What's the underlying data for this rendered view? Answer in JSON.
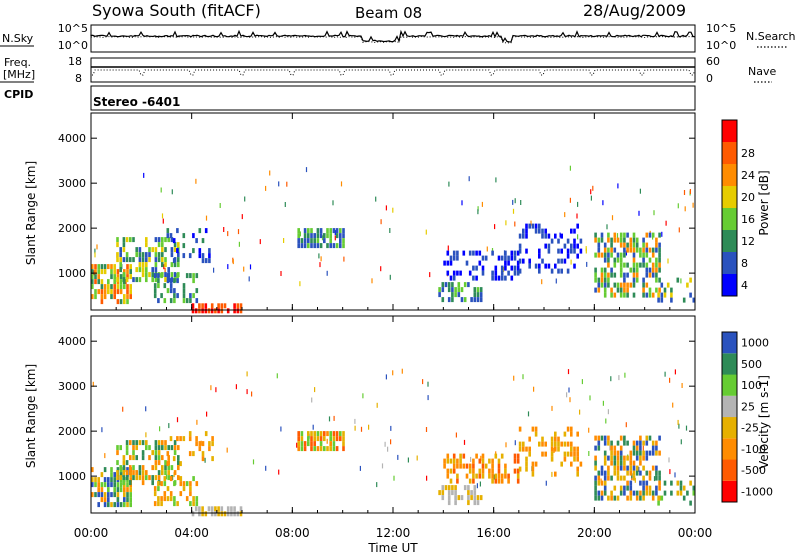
{
  "header": {
    "station": "Syowa South (fitACF)",
    "beam": "Beam 08",
    "date": "28/Aug/2009"
  },
  "noise_panel": {
    "left_label": "N.Sky",
    "left_ticks": [
      "10^5",
      "10^0"
    ],
    "right_ticks": [
      "10^5",
      "10^0"
    ],
    "right_label": "N.Search"
  },
  "freq_panel": {
    "left_label_1": "Freq.",
    "left_label_2": "[MHz]",
    "left_ticks": [
      "18",
      "8"
    ],
    "right_ticks": [
      "60",
      "0"
    ],
    "right_label": "Nave"
  },
  "cpid": {
    "label": "CPID",
    "value": "Stereo -6401"
  },
  "colors": {
    "power": [
      "#0000ff",
      "#2a52be",
      "#2e8b57",
      "#66cc33",
      "#e6cc00",
      "#ff8c00",
      "#ff5a00",
      "#ff0000"
    ],
    "velocity": [
      "#ff0000",
      "#ff5a00",
      "#ff8c00",
      "#e6b000",
      "#b4b4b4",
      "#66cc33",
      "#2e8b57",
      "#2a52be"
    ]
  },
  "chart_data": [
    {
      "type": "heatmap",
      "name": "power",
      "ylabel": "Slant Range [km]",
      "yticks": [
        "1000",
        "2000",
        "3000",
        "4000"
      ],
      "ylim": [
        180,
        4560
      ],
      "xlim_hours": [
        0,
        24
      ],
      "colorbar_label": "Power [dB]",
      "colorbar_ticks": [
        "4",
        "8",
        "12",
        "16",
        "20",
        "24",
        "28"
      ],
      "regions": [
        {
          "t": [
            0.0,
            1.6
          ],
          "r": [
            400,
            1200
          ],
          "c": [
            2,
            3,
            5,
            6,
            4
          ],
          "d": 0.75
        },
        {
          "t": [
            1.0,
            3.5
          ],
          "r": [
            900,
            1800
          ],
          "c": [
            1,
            2,
            3,
            4
          ],
          "d": 0.55
        },
        {
          "t": [
            2.5,
            4.2
          ],
          "r": [
            400,
            1000
          ],
          "c": [
            1,
            2,
            3
          ],
          "d": 0.45
        },
        {
          "t": [
            3.0,
            4.8
          ],
          "r": [
            1300,
            2000
          ],
          "c": [
            0,
            1,
            2
          ],
          "d": 0.25
        },
        {
          "t": [
            4.0,
            6.0
          ],
          "r": [
            200,
            330
          ],
          "c": [
            6,
            7
          ],
          "d": 0.85
        },
        {
          "t": [
            8.2,
            10.0
          ],
          "r": [
            1600,
            2000
          ],
          "c": [
            1,
            2,
            3
          ],
          "d": 0.85
        },
        {
          "t": [
            13.8,
            15.5
          ],
          "r": [
            400,
            800
          ],
          "c": [
            1,
            2,
            3
          ],
          "d": 0.55
        },
        {
          "t": [
            14.0,
            17.0
          ],
          "r": [
            900,
            1500
          ],
          "c": [
            0,
            1
          ],
          "d": 0.4
        },
        {
          "t": [
            17.0,
            19.5
          ],
          "r": [
            1000,
            2100
          ],
          "c": [
            0,
            1
          ],
          "d": 0.3
        },
        {
          "t": [
            20.0,
            22.6
          ],
          "r": [
            500,
            1900
          ],
          "c": [
            1,
            2,
            3,
            5
          ],
          "d": 0.6
        },
        {
          "t": [
            22.5,
            24.0
          ],
          "r": [
            400,
            900
          ],
          "c": [
            1,
            2,
            4
          ],
          "d": 0.3
        }
      ]
    },
    {
      "type": "heatmap",
      "name": "velocity",
      "ylabel": "Slant Range [km]",
      "yticks": [
        "1000",
        "2000",
        "3000",
        "4000"
      ],
      "ylim": [
        180,
        4560
      ],
      "xlim_hours": [
        0,
        24
      ],
      "xticks": [
        "00:00",
        "04:00",
        "08:00",
        "12:00",
        "16:00",
        "20:00",
        "00:00"
      ],
      "xlabel": "Time UT",
      "colorbar_label": "Velocity [m s-1]",
      "colorbar_ticks": [
        "-1000",
        "-500",
        "-100",
        "-25",
        "25",
        "100",
        "500",
        "1000"
      ],
      "regions": [
        {
          "t": [
            0.0,
            1.6
          ],
          "r": [
            400,
            1200
          ],
          "c": [
            2,
            3,
            5,
            6,
            7
          ],
          "d": 0.75
        },
        {
          "t": [
            1.0,
            3.5
          ],
          "r": [
            900,
            1800
          ],
          "c": [
            2,
            3,
            5,
            6
          ],
          "d": 0.55
        },
        {
          "t": [
            2.5,
            4.2
          ],
          "r": [
            400,
            1000
          ],
          "c": [
            2,
            3,
            5
          ],
          "d": 0.45
        },
        {
          "t": [
            3.0,
            4.8
          ],
          "r": [
            1300,
            2000
          ],
          "c": [
            2,
            3
          ],
          "d": 0.25
        },
        {
          "t": [
            4.0,
            6.0
          ],
          "r": [
            200,
            330
          ],
          "c": [
            3,
            4
          ],
          "d": 0.85
        },
        {
          "t": [
            8.2,
            10.0
          ],
          "r": [
            1600,
            2000
          ],
          "c": [
            1,
            2,
            3,
            5
          ],
          "d": 0.85
        },
        {
          "t": [
            13.8,
            15.5
          ],
          "r": [
            400,
            800
          ],
          "c": [
            3,
            4
          ],
          "d": 0.55
        },
        {
          "t": [
            14.0,
            17.0
          ],
          "r": [
            900,
            1500
          ],
          "c": [
            1,
            2,
            3
          ],
          "d": 0.4
        },
        {
          "t": [
            17.0,
            19.5
          ],
          "r": [
            1000,
            2100
          ],
          "c": [
            2,
            3
          ],
          "d": 0.3
        },
        {
          "t": [
            20.0,
            22.6
          ],
          "r": [
            500,
            1900
          ],
          "c": [
            2,
            3,
            6,
            7
          ],
          "d": 0.6
        },
        {
          "t": [
            22.5,
            24.0
          ],
          "r": [
            400,
            900
          ],
          "c": [
            3,
            5,
            6
          ],
          "d": 0.3
        }
      ]
    }
  ]
}
